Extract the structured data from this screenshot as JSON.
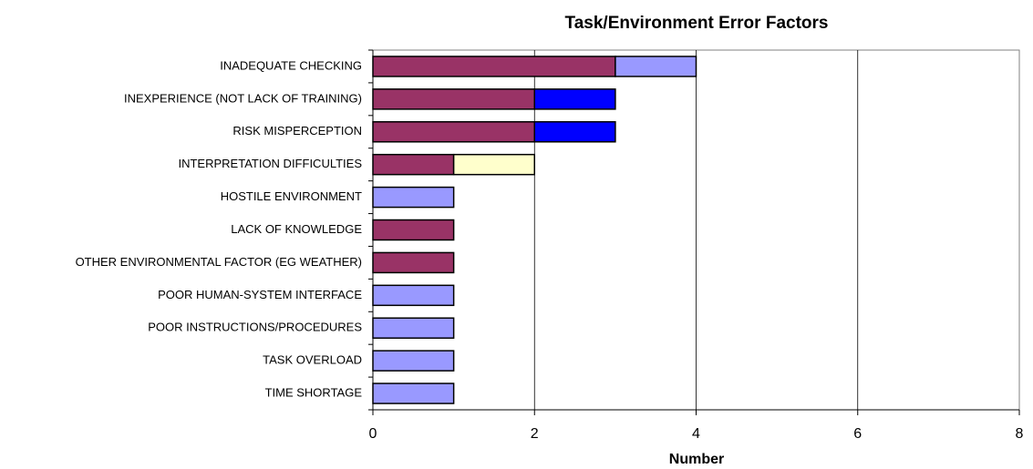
{
  "chart_data": {
    "type": "stacked-barh",
    "title": "Task/Environment Error Factors",
    "x_label": "Number",
    "categories": [
      "INADEQUATE CHECKING",
      "INEXPERIENCE (NOT LACK OF TRAINING)",
      "RISK MISPERCEPTION",
      "INTERPRETATION DIFFICULTIES",
      "HOSTILE ENVIRONMENT",
      "LACK OF KNOWLEDGE",
      "OTHER ENVIRONMENTAL FACTOR (EG WEATHER)",
      "POOR HUMAN-SYSTEM INTERFACE",
      "POOR INSTRUCTIONS/PROCEDURES",
      "TASK OVERLOAD",
      "TIME SHORTAGE"
    ],
    "series": [
      {
        "color": "#993366",
        "values": [
          3,
          2,
          2,
          1,
          0,
          1,
          1,
          0,
          0,
          0,
          0
        ]
      },
      {
        "color": "#9999ff",
        "values": [
          1,
          0,
          0,
          0,
          1,
          0,
          0,
          1,
          1,
          1,
          1
        ]
      },
      {
        "color": "#0000ff",
        "values": [
          0,
          1,
          1,
          0,
          0,
          0,
          0,
          0,
          0,
          0,
          0
        ]
      },
      {
        "color": "#ffffcc",
        "values": [
          0,
          0,
          0,
          1,
          0,
          0,
          0,
          0,
          0,
          0,
          0
        ]
      }
    ],
    "xlim": [
      0,
      8
    ],
    "xticks": [
      0,
      2,
      4,
      6,
      8
    ],
    "grid": true
  }
}
